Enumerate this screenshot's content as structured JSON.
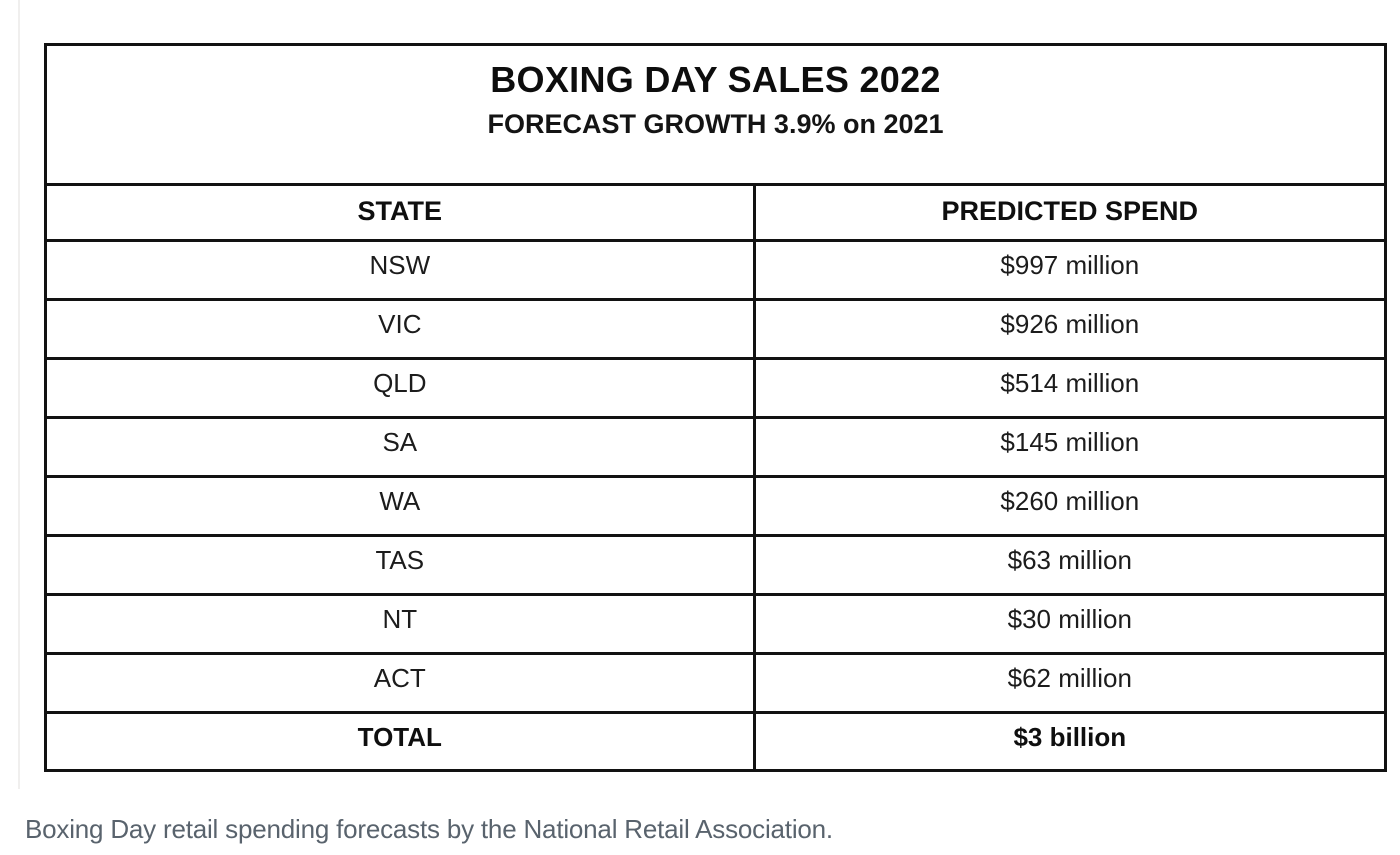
{
  "chart_data": {
    "type": "table",
    "title": "BOXING DAY SALES 2022",
    "subtitle": "FORECAST GROWTH 3.9% on 2021",
    "columns": [
      "STATE",
      "PREDICTED SPEND"
    ],
    "categories": [
      "NSW",
      "VIC",
      "QLD",
      "SA",
      "WA",
      "TAS",
      "NT",
      "ACT"
    ],
    "values_millions": [
      997,
      926,
      514,
      145,
      260,
      63,
      30,
      62
    ],
    "value_labels": [
      "$997 million",
      "$926 million",
      "$514 million",
      "$145 million",
      "$260 million",
      "$63 million",
      "$30 million",
      "$62 million"
    ],
    "total_label": "TOTAL",
    "total_value": "$3 billion",
    "caption": "Boxing Day retail spending forecasts by the National Retail Association.",
    "layout": {
      "border_color": "#121212",
      "caption_color": "#59636d",
      "text_color": "#1c1c1c",
      "column_split_percent": 53
    }
  },
  "table": {
    "title": "BOXING DAY SALES 2022",
    "subtitle": "FORECAST GROWTH 3.9% on 2021",
    "columns": {
      "state": "STATE",
      "spend": "PREDICTED SPEND"
    },
    "rows": [
      {
        "state": "NSW",
        "spend": "$997 million"
      },
      {
        "state": "VIC",
        "spend": "$926 million"
      },
      {
        "state": "QLD",
        "spend": "$514 million"
      },
      {
        "state": "SA",
        "spend": "$145 million"
      },
      {
        "state": "WA",
        "spend": "$260 million"
      },
      {
        "state": "TAS",
        "spend": "$63 million"
      },
      {
        "state": "NT",
        "spend": "$30 million"
      },
      {
        "state": "ACT",
        "spend": "$62 million"
      }
    ],
    "total": {
      "state": "TOTAL",
      "spend": "$3 billion"
    }
  },
  "page": {
    "caption": "Boxing Day retail spending forecasts by the National Retail Association."
  }
}
